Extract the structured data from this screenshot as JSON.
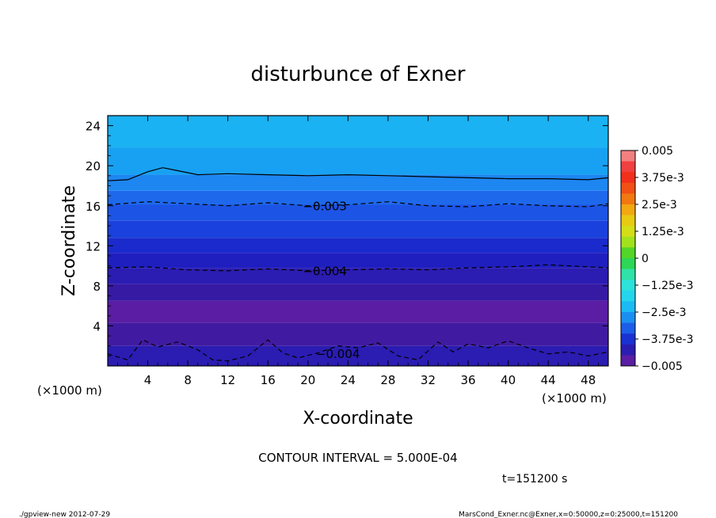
{
  "chart_data": {
    "type": "heatmap",
    "title": "disturbunce of Exner",
    "xlabel": "X-coordinate",
    "ylabel": "Z-coordinate",
    "x_unit": "(×1000 m)",
    "z_unit": "(×1000 m)",
    "xlim": [
      0,
      50
    ],
    "ylim": [
      0,
      25
    ],
    "x_ticks": [
      "4",
      "8",
      "12",
      "16",
      "20",
      "24",
      "28",
      "32",
      "36",
      "40",
      "44",
      "48"
    ],
    "y_ticks": [
      "4",
      "8",
      "12",
      "16",
      "20",
      "24"
    ],
    "colorbar_labels": [
      "0.005",
      "3.75e-3",
      "2.5e-3",
      "1.25e-3",
      "0",
      "-1.25e-3",
      "-2.5e-3",
      "-3.75e-3",
      "-0.005"
    ],
    "colorbar_min": -0.005,
    "colorbar_max": 0.005,
    "colorbar_steps": 20,
    "bands": [
      {
        "z_low": 0,
        "z_high": 2,
        "value": -0.00425
      },
      {
        "z_low": 2,
        "z_high": 4.3,
        "value": -0.00455
      },
      {
        "z_low": 4.3,
        "z_high": 6.5,
        "value": -0.00475
      },
      {
        "z_low": 6.5,
        "z_high": 8.2,
        "value": -0.00445
      },
      {
        "z_low": 8.2,
        "z_high": 9.8,
        "value": -0.00425
      },
      {
        "z_low": 9.8,
        "z_high": 11.3,
        "value": -0.00405
      },
      {
        "z_low": 11.3,
        "z_high": 12.8,
        "value": -0.00385
      },
      {
        "z_low": 12.8,
        "z_high": 14.5,
        "value": -0.00355
      },
      {
        "z_low": 14.5,
        "z_high": 16.1,
        "value": -0.00335
      },
      {
        "z_low": 16.1,
        "z_high": 17.5,
        "value": -0.00315
      },
      {
        "z_low": 17.5,
        "z_high": 19.1,
        "value": -0.00285
      },
      {
        "z_low": 19.1,
        "z_high": 21.8,
        "value": -0.00255
      },
      {
        "z_low": 21.8,
        "z_high": 25,
        "value": -0.00235
      }
    ],
    "contours": [
      {
        "label": "-0.003",
        "label_x": 19.5,
        "style": "dashed",
        "x": [
          0,
          4,
          8,
          12,
          16,
          20,
          24,
          28,
          32,
          36,
          40,
          44,
          48,
          50
        ],
        "z": [
          16.1,
          16.4,
          16.2,
          16.0,
          16.3,
          16.0,
          16.1,
          16.4,
          16.0,
          15.9,
          16.2,
          16.0,
          15.9,
          16.2
        ]
      },
      {
        "label": "-0.004",
        "label_x": 19.5,
        "style": "dashed",
        "x": [
          0,
          4,
          8,
          12,
          16,
          20,
          24,
          28,
          32,
          36,
          40,
          44,
          48,
          50
        ],
        "z": [
          9.8,
          9.9,
          9.6,
          9.5,
          9.7,
          9.5,
          9.6,
          9.7,
          9.6,
          9.8,
          9.9,
          10.1,
          9.9,
          9.8
        ]
      },
      {
        "label": "-0.004",
        "label_x": 20.8,
        "style": "dashed",
        "x": [
          0,
          2,
          3.5,
          5,
          7,
          9,
          10.5,
          12,
          14,
          16,
          17.5,
          19,
          21,
          23,
          25,
          27,
          29,
          31,
          33,
          34.5,
          36,
          38,
          40,
          42,
          44,
          46,
          48,
          50
        ],
        "z": [
          1.2,
          0.6,
          2.6,
          1.9,
          2.4,
          1.6,
          0.6,
          0.5,
          1.0,
          2.6,
          1.3,
          0.8,
          1.3,
          2.0,
          1.8,
          2.3,
          1.0,
          0.6,
          2.4,
          1.4,
          2.2,
          1.8,
          2.5,
          1.8,
          1.2,
          1.4,
          1.0,
          1.4
        ]
      },
      {
        "label": "",
        "label_x": 0,
        "style": "solid",
        "x": [
          0,
          2,
          4,
          5.5,
          7,
          9,
          12,
          16,
          20,
          24,
          28,
          32,
          36,
          40,
          44,
          48,
          50
        ],
        "z": [
          18.5,
          18.6,
          19.4,
          19.8,
          19.5,
          19.1,
          19.2,
          19.1,
          19.0,
          19.1,
          19.0,
          18.9,
          18.8,
          18.7,
          18.7,
          18.6,
          18.8
        ]
      }
    ]
  },
  "annotations": {
    "contour_interval": "CONTOUR INTERVAL = 5.000E-04",
    "time": "t=151200 s",
    "footer_left": "./gpview-new  2012-07-29",
    "footer_right": "MarsCond_Exner.nc@Exner,x=0:50000,z=0:25000,t=151200"
  }
}
